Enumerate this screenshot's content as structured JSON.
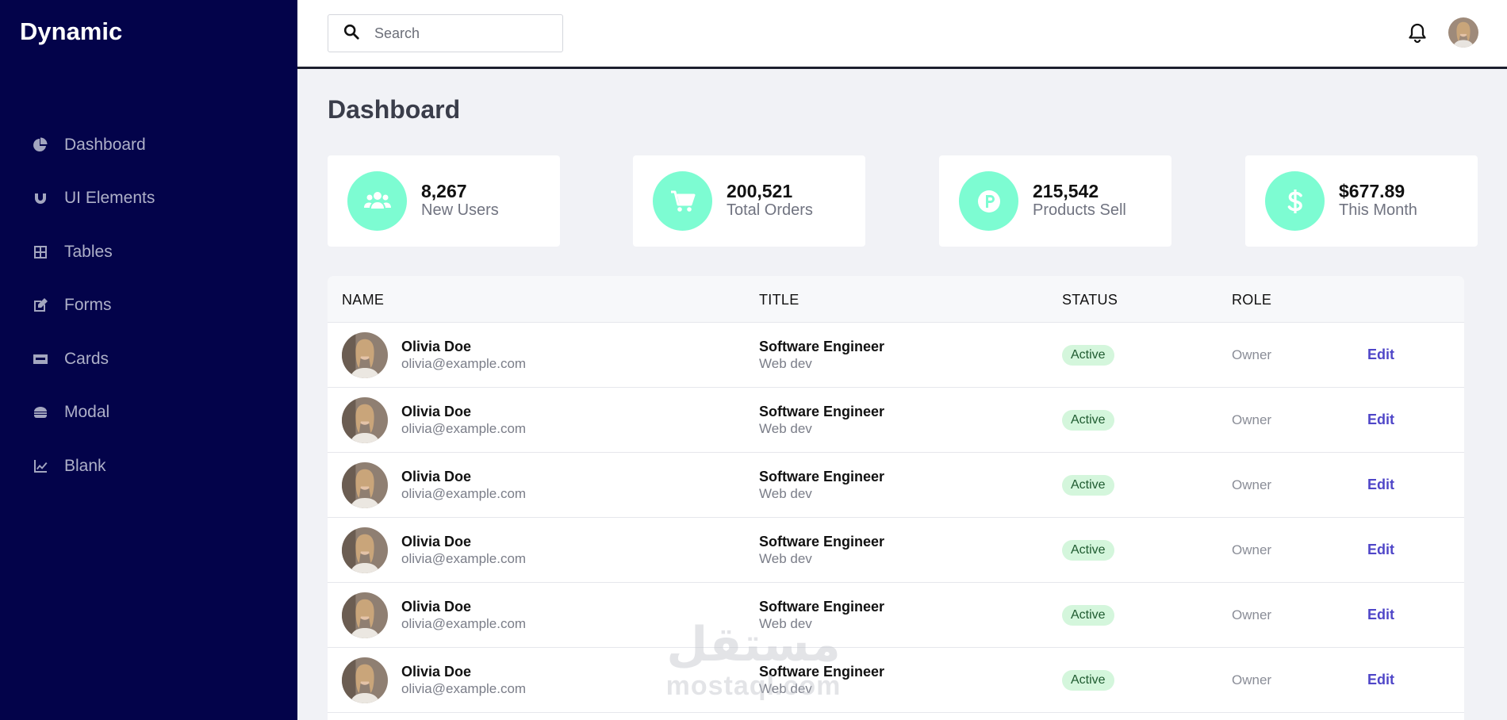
{
  "sidebar": {
    "brand": "Dynamic",
    "items": [
      {
        "label": "Dashboard",
        "icon": "pie-chart-icon"
      },
      {
        "label": "UI Elements",
        "icon": "magnet-icon"
      },
      {
        "label": "Tables",
        "icon": "table-icon"
      },
      {
        "label": "Forms",
        "icon": "edit-form-icon"
      },
      {
        "label": "Cards",
        "icon": "credit-card-icon"
      },
      {
        "label": "Modal",
        "icon": "burger-icon"
      },
      {
        "label": "Blank",
        "icon": "line-chart-icon"
      }
    ]
  },
  "header": {
    "search_placeholder": "Search"
  },
  "page": {
    "title": "Dashboard"
  },
  "stats": [
    {
      "value": "8,267",
      "label": "New Users",
      "icon": "users-icon"
    },
    {
      "value": "200,521",
      "label": "Total Orders",
      "icon": "cart-icon"
    },
    {
      "value": "215,542",
      "label": "Products Sell",
      "icon": "product-hunt-icon"
    },
    {
      "value": "$677.89",
      "label": "This Month",
      "icon": "dollar-icon"
    }
  ],
  "table": {
    "headers": {
      "name": "NAME",
      "title": "TITLE",
      "status": "STATUS",
      "role": "ROLE"
    },
    "rows": [
      {
        "name": "Olivia Doe",
        "email": "olivia@example.com",
        "title": "Software Engineer",
        "sub": "Web dev",
        "status": "Active",
        "role": "Owner",
        "action": "Edit"
      },
      {
        "name": "Olivia Doe",
        "email": "olivia@example.com",
        "title": "Software Engineer",
        "sub": "Web dev",
        "status": "Active",
        "role": "Owner",
        "action": "Edit"
      },
      {
        "name": "Olivia Doe",
        "email": "olivia@example.com",
        "title": "Software Engineer",
        "sub": "Web dev",
        "status": "Active",
        "role": "Owner",
        "action": "Edit"
      },
      {
        "name": "Olivia Doe",
        "email": "olivia@example.com",
        "title": "Software Engineer",
        "sub": "Web dev",
        "status": "Active",
        "role": "Owner",
        "action": "Edit"
      },
      {
        "name": "Olivia Doe",
        "email": "olivia@example.com",
        "title": "Software Engineer",
        "sub": "Web dev",
        "status": "Active",
        "role": "Owner",
        "action": "Edit"
      },
      {
        "name": "Olivia Doe",
        "email": "olivia@example.com",
        "title": "Software Engineer",
        "sub": "Web dev",
        "status": "Active",
        "role": "Owner",
        "action": "Edit"
      }
    ]
  },
  "watermark": {
    "arabic": "مستقل",
    "latin": "mostaql.com"
  },
  "colors": {
    "sidebar_bg": "#03034a",
    "accent": "#7dfcd2",
    "edit_link": "#4f46c8",
    "status_bg": "#d4f6dc"
  }
}
